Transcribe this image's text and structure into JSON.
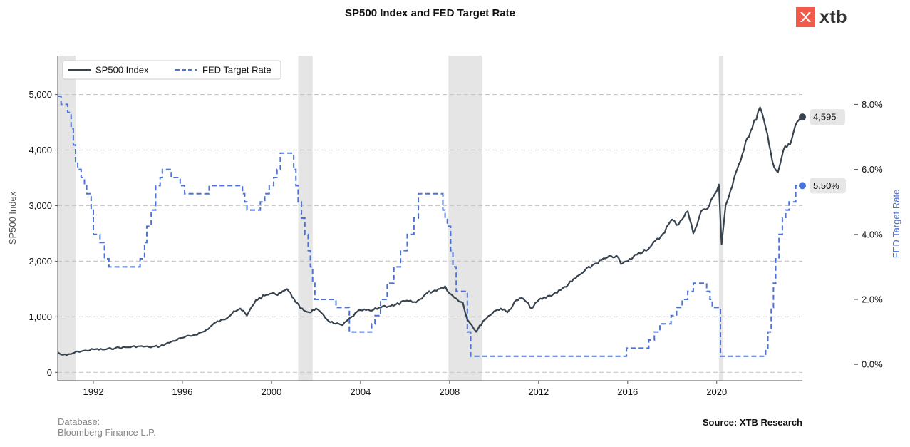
{
  "header": {
    "title": "SP500 Index and FED Target Rate",
    "brand": "xtb"
  },
  "footer": {
    "database_label": "Database:",
    "database_source": "Bloomberg Finance L.P.",
    "source": "Source: XTB Research"
  },
  "colors": {
    "sp500": "#37434f",
    "fed": "#4a72d9",
    "recession": "#e5e5e5",
    "grid": "#c8c8c8",
    "brand": "#f25a4b"
  },
  "chart_data": {
    "type": "line",
    "title": "SP500 Index and FED Target Rate",
    "xlabel": "",
    "ylabel_left": "SP500 Index",
    "ylabel_right": "FED Target Rate",
    "xlim": [
      1990.4,
      2023.85
    ],
    "ylim_left": [
      -150,
      5700
    ],
    "ylim_right": [
      -0.5,
      9.5
    ],
    "x_ticks": [
      1992,
      1996,
      2000,
      2004,
      2008,
      2012,
      2016,
      2020
    ],
    "x_tick_labels": [
      "1992",
      "1996",
      "2000",
      "2004",
      "2008",
      "2012",
      "2016",
      "2020"
    ],
    "y_left_ticks": [
      0,
      1000,
      2000,
      3000,
      4000,
      5000
    ],
    "y_left_tick_labels": [
      "0",
      "1,000",
      "2,000",
      "3,000",
      "4,000",
      "5,000"
    ],
    "y_right_ticks": [
      0,
      2,
      4,
      6,
      8
    ],
    "y_right_tick_labels": [
      "0.0%",
      "2.0%",
      "4.0%",
      "6.0%",
      "8.0%"
    ],
    "grid": "horizontal dashed at left-axis ticks",
    "legend": {
      "position": "top-left",
      "entries": [
        "SP500 Index",
        "FED Target Rate"
      ]
    },
    "recessions": [
      [
        1990.4,
        1991.2
      ],
      [
        2001.2,
        2001.85
      ],
      [
        2007.95,
        2009.45
      ],
      [
        2020.1,
        2020.3
      ]
    ],
    "series": [
      {
        "name": "SP500 Index",
        "axis": "left",
        "style": "solid",
        "x": [
          1990.4,
          1990.55,
          1990.8,
          1991.0,
          1991.3,
          1991.7,
          1992.0,
          1992.5,
          1993.0,
          1993.5,
          1994.0,
          1994.5,
          1995.0,
          1995.5,
          1996.0,
          1996.5,
          1997.0,
          1997.5,
          1997.9,
          1998.3,
          1998.6,
          1998.9,
          1999.3,
          1999.7,
          2000.0,
          2000.2,
          2000.5,
          2000.7,
          2001.0,
          2001.3,
          2001.7,
          2002.0,
          2002.5,
          2002.8,
          2003.2,
          2003.6,
          2004.0,
          2004.5,
          2005.0,
          2005.5,
          2006.0,
          2006.5,
          2007.0,
          2007.5,
          2007.8,
          2008.0,
          2008.3,
          2008.6,
          2008.8,
          2009.0,
          2009.2,
          2009.5,
          2010.0,
          2010.3,
          2010.6,
          2011.0,
          2011.3,
          2011.7,
          2012.0,
          2012.5,
          2013.0,
          2013.5,
          2014.0,
          2014.5,
          2015.0,
          2015.5,
          2015.7,
          2016.0,
          2016.5,
          2017.0,
          2017.5,
          2018.0,
          2018.2,
          2018.7,
          2018.95,
          2019.3,
          2019.6,
          2019.9,
          2020.1,
          2020.22,
          2020.4,
          2020.7,
          2021.0,
          2021.3,
          2021.6,
          2021.95,
          2022.2,
          2022.5,
          2022.75,
          2023.0,
          2023.3,
          2023.6,
          2023.8
        ],
        "values": [
          360,
          320,
          310,
          330,
          375,
          390,
          415,
          410,
          440,
          450,
          470,
          455,
          470,
          550,
          620,
          670,
          740,
          900,
          950,
          1100,
          1150,
          1020,
          1300,
          1380,
          1420,
          1400,
          1460,
          1500,
          1330,
          1150,
          1080,
          1150,
          950,
          880,
          850,
          1000,
          1120,
          1110,
          1190,
          1200,
          1280,
          1260,
          1430,
          1500,
          1550,
          1420,
          1330,
          1250,
          950,
          850,
          730,
          920,
          1100,
          1150,
          1080,
          1300,
          1330,
          1150,
          1300,
          1380,
          1480,
          1640,
          1800,
          1950,
          2050,
          2100,
          1950,
          2000,
          2150,
          2250,
          2450,
          2750,
          2650,
          2900,
          2500,
          2900,
          2950,
          3200,
          3380,
          2300,
          3000,
          3350,
          3750,
          4150,
          4400,
          4770,
          4400,
          3800,
          3600,
          4000,
          4100,
          4500,
          4595
        ]
      },
      {
        "name": "FED Target Rate",
        "axis": "right",
        "style": "dashed-step",
        "x": [
          1990.4,
          1990.55,
          1990.85,
          1991.0,
          1991.1,
          1991.2,
          1991.3,
          1991.45,
          1991.6,
          1991.7,
          1991.9,
          1992.0,
          1992.3,
          1992.5,
          1992.7,
          1994.1,
          1994.3,
          1994.4,
          1994.6,
          1994.8,
          1995.0,
          1995.1,
          1995.5,
          1995.9,
          1996.1,
          1997.2,
          1998.7,
          1998.8,
          1998.9,
          1999.5,
          1999.7,
          1999.9,
          2000.1,
          2000.25,
          2000.4,
          2001.0,
          2001.1,
          2001.2,
          2001.35,
          2001.5,
          2001.65,
          2001.75,
          2001.85,
          2001.95,
          2002.9,
          2003.5,
          2004.5,
          2004.65,
          2004.9,
          2005.2,
          2005.5,
          2005.8,
          2006.1,
          2006.4,
          2006.6,
          2007.7,
          2007.8,
          2007.9,
          2008.05,
          2008.15,
          2008.3,
          2008.8,
          2008.95,
          2015.95,
          2016.95,
          2017.2,
          2017.45,
          2017.95,
          2018.2,
          2018.45,
          2018.7,
          2018.95,
          2019.55,
          2019.7,
          2019.8,
          2020.17,
          2022.2,
          2022.3,
          2022.45,
          2022.55,
          2022.65,
          2022.8,
          2022.95,
          2023.1,
          2023.25,
          2023.55
        ],
        "values": [
          8.25,
          8.0,
          7.75,
          7.25,
          6.75,
          6.25,
          6.0,
          5.75,
          5.5,
          5.25,
          4.75,
          4.0,
          3.75,
          3.25,
          3.0,
          3.25,
          3.75,
          4.25,
          4.75,
          5.5,
          5.75,
          6.0,
          5.75,
          5.5,
          5.25,
          5.5,
          5.25,
          5.0,
          4.75,
          5.0,
          5.25,
          5.5,
          5.75,
          6.0,
          6.5,
          6.0,
          5.5,
          5.0,
          4.5,
          4.0,
          3.5,
          3.0,
          2.5,
          2.0,
          1.75,
          1.0,
          1.25,
          1.5,
          2.0,
          2.5,
          3.0,
          3.5,
          4.0,
          4.5,
          5.25,
          4.75,
          4.5,
          4.25,
          3.5,
          3.0,
          2.25,
          1.0,
          0.25,
          0.5,
          0.75,
          1.0,
          1.25,
          1.5,
          1.75,
          2.0,
          2.25,
          2.5,
          2.25,
          2.0,
          1.75,
          0.25,
          0.5,
          1.0,
          1.75,
          2.5,
          3.25,
          4.0,
          4.5,
          4.75,
          5.0,
          5.5
        ]
      }
    ],
    "end_labels": [
      {
        "series": "SP500 Index",
        "value": 4595,
        "text": "4,595"
      },
      {
        "series": "FED Target Rate",
        "value": 5.5,
        "text": "5.50%"
      }
    ]
  }
}
